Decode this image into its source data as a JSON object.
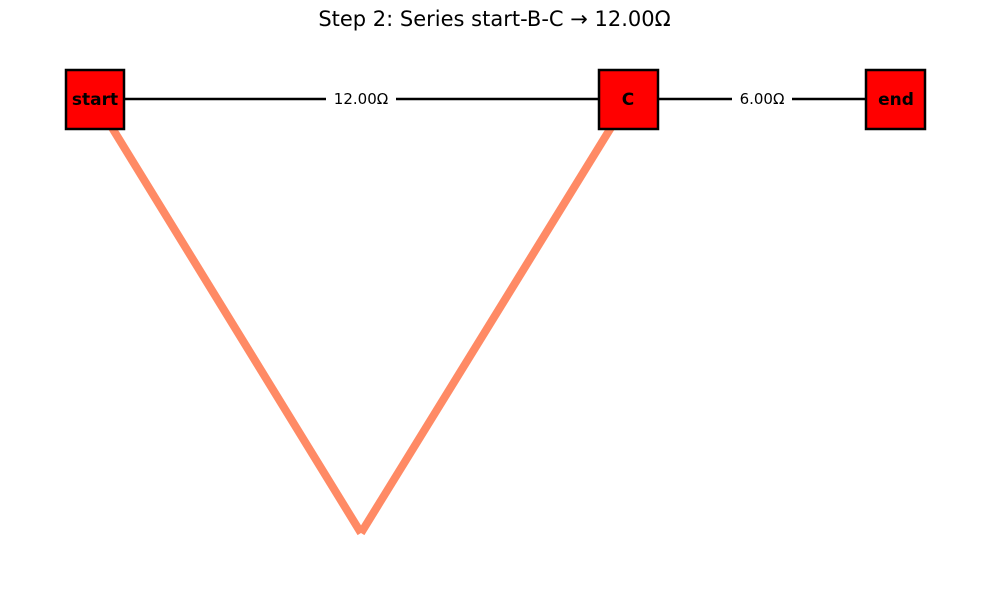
{
  "title": "Step 2: Series start-B-C → 12.00Ω",
  "colors": {
    "node_fill": "#ff0000",
    "node_stroke": "#000000",
    "edge": "#000000",
    "highlight_path": "#ff8a65",
    "label_background": "#ffffff"
  },
  "nodes": {
    "start": {
      "label": "start"
    },
    "c": {
      "label": "C"
    },
    "end": {
      "label": "end"
    }
  },
  "edges": {
    "start_c": {
      "label": "12.00Ω"
    },
    "c_end": {
      "label": "6.00Ω"
    }
  },
  "highlighted_path": {
    "description_nodes": [
      "start",
      "B",
      "C"
    ]
  }
}
